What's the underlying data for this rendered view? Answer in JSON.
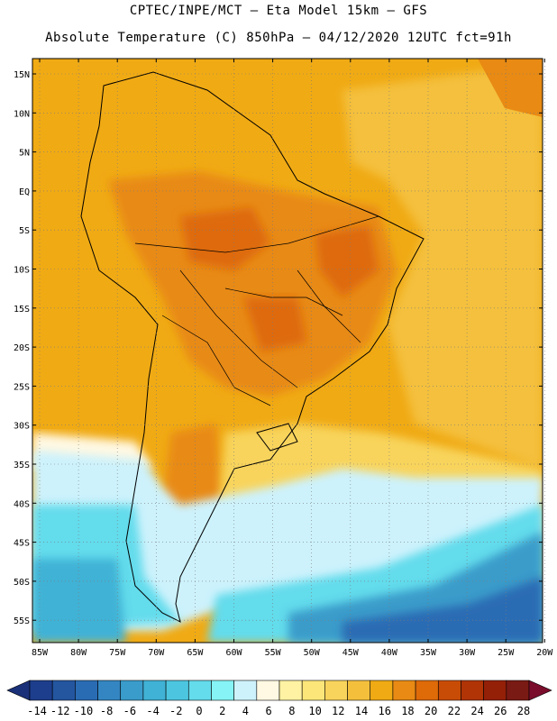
{
  "header": {
    "line1": "CPTEC/INPE/MCT –  Eta Model 15km – GFS",
    "line2": "Absolute Temperature (C) 850hPa – 04/12/2020 12UTC fct=91h"
  },
  "axes": {
    "lat_labels": [
      "15N",
      "10N",
      "5N",
      "EQ",
      "5S",
      "10S",
      "15S",
      "20S",
      "25S",
      "30S",
      "35S",
      "40S",
      "45S",
      "50S",
      "55S"
    ],
    "lon_labels": [
      "85W",
      "80W",
      "75W",
      "70W",
      "65W",
      "60W",
      "55W",
      "50W",
      "45W",
      "40W",
      "35W",
      "30W",
      "25W",
      "20W"
    ]
  },
  "colorbar": {
    "labels": [
      "-14",
      "-12",
      "-10",
      "-8",
      "-6",
      "-4",
      "-2",
      "0",
      "2",
      "4",
      "6",
      "8",
      "10",
      "12",
      "14",
      "16",
      "18",
      "20",
      "22",
      "24",
      "26",
      "28"
    ],
    "colors": [
      "#1d3e8c",
      "#2456a0",
      "#2a6cb4",
      "#3486c2",
      "#3a9cca",
      "#40b2d6",
      "#4cc6e0",
      "#64dcec",
      "#86f4f6",
      "#cdf2fc",
      "#fff8e2",
      "#fff2a2",
      "#fce67a",
      "#f8d45c",
      "#f4c03c",
      "#f0aa14",
      "#e88a14",
      "#de6a08",
      "#c84c06",
      "#b03406",
      "#942008",
      "#7a1a14"
    ],
    "left_arrow_color": "#1a3078",
    "right_arrow_color": "#7a0c2c"
  }
}
